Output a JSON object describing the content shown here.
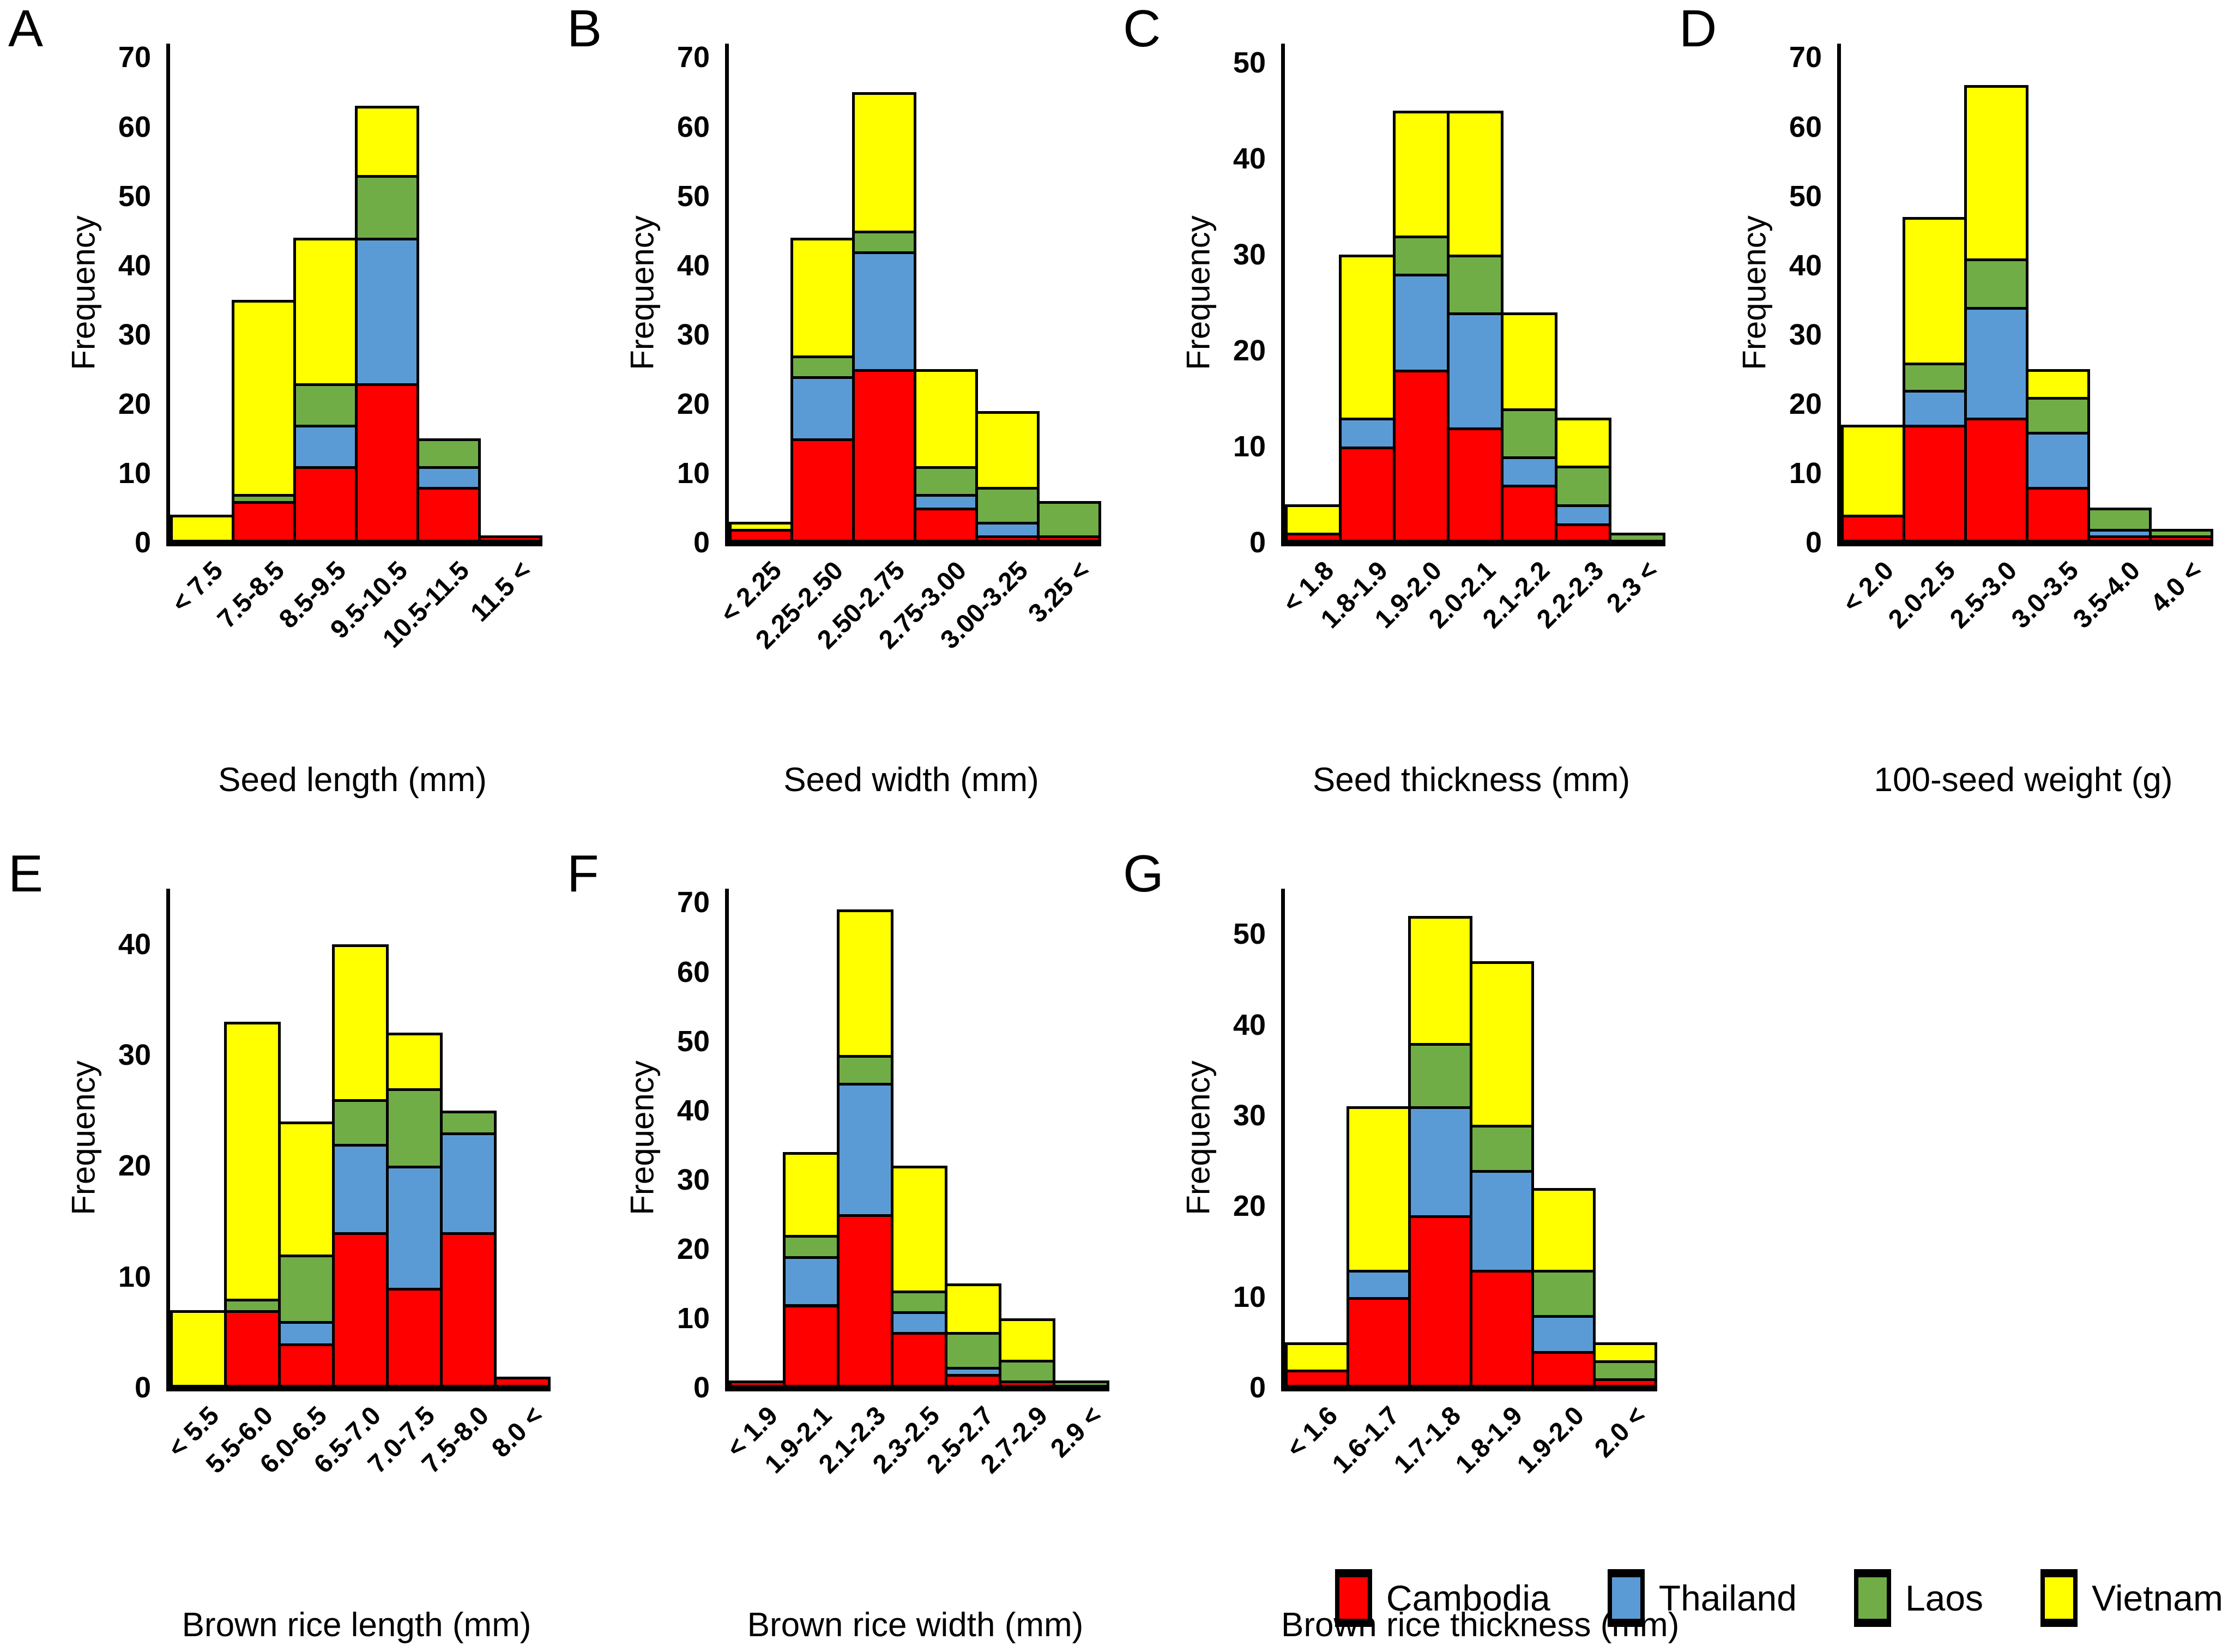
{
  "figure": {
    "ylabel": "Frequency",
    "legend_position": "bottom-right",
    "grid": "off",
    "background": "#ffffff",
    "axis_color": "#000000"
  },
  "legend": {
    "items": [
      {
        "label": "Cambodia",
        "color": "#FF0000",
        "swatch": "red-rect-icon"
      },
      {
        "label": "Thailand",
        "color": "#5B9BD5",
        "swatch": "blue-rect-icon"
      },
      {
        "label": "Laos",
        "color": "#70AD47",
        "swatch": "green-rect-icon"
      },
      {
        "label": "Vietnam",
        "color": "#FFFF00",
        "swatch": "yellow-rect-icon"
      }
    ]
  },
  "chart_data": [
    {
      "panel": "A",
      "type": "bar",
      "stacked": true,
      "title": "",
      "xlabel": "Seed length (mm)",
      "ylabel": "Frequency",
      "categories": [
        "< 7.5",
        "7.5-8.5",
        "8.5-9.5",
        "9.5-10.5",
        "10.5-11.5",
        "11.5 <"
      ],
      "yticks": [
        0,
        10,
        20,
        30,
        40,
        50,
        60,
        70
      ],
      "ylim": [
        0,
        72
      ],
      "series": [
        {
          "name": "Cambodia",
          "color": "#FF0000",
          "values": [
            0,
            6,
            11,
            23,
            8,
            1
          ]
        },
        {
          "name": "Thailand",
          "color": "#5B9BD5",
          "values": [
            0,
            0,
            6,
            21,
            3,
            0
          ]
        },
        {
          "name": "Laos",
          "color": "#70AD47",
          "values": [
            0,
            1,
            6,
            9,
            4,
            0
          ]
        },
        {
          "name": "Vietnam",
          "color": "#FFFF00",
          "values": [
            4,
            28,
            21,
            10,
            0,
            0
          ]
        }
      ]
    },
    {
      "panel": "B",
      "type": "bar",
      "stacked": true,
      "title": "",
      "xlabel": "Seed width (mm)",
      "ylabel": "Frequency",
      "categories": [
        "< 2.25",
        "2.25-2.50",
        "2.50-2.75",
        "2.75-3.00",
        "3.00-3.25",
        "3.25 <"
      ],
      "yticks": [
        0,
        10,
        20,
        30,
        40,
        50,
        60,
        70
      ],
      "ylim": [
        0,
        72
      ],
      "series": [
        {
          "name": "Cambodia",
          "color": "#FF0000",
          "values": [
            2,
            15,
            25,
            5,
            1,
            1
          ]
        },
        {
          "name": "Thailand",
          "color": "#5B9BD5",
          "values": [
            0,
            9,
            17,
            2,
            2,
            0
          ]
        },
        {
          "name": "Laos",
          "color": "#70AD47",
          "values": [
            0,
            3,
            3,
            4,
            5,
            5
          ]
        },
        {
          "name": "Vietnam",
          "color": "#FFFF00",
          "values": [
            1,
            17,
            20,
            14,
            11,
            0
          ]
        }
      ]
    },
    {
      "panel": "C",
      "type": "bar",
      "stacked": true,
      "title": "",
      "xlabel": "Seed thickness (mm)",
      "ylabel": "Frequency",
      "categories": [
        "< 1.8",
        "1.8-1.9",
        "1.9-2.0",
        "2.0-2.1",
        "2.1-2.2",
        "2.2-2.3",
        "2.3 <"
      ],
      "yticks": [
        0,
        10,
        20,
        30,
        40,
        50
      ],
      "ylim": [
        0,
        52
      ],
      "series": [
        {
          "name": "Cambodia",
          "color": "#FF0000",
          "values": [
            1,
            10,
            18,
            12,
            6,
            2,
            0
          ]
        },
        {
          "name": "Thailand",
          "color": "#5B9BD5",
          "values": [
            0,
            3,
            10,
            12,
            3,
            2,
            0
          ]
        },
        {
          "name": "Laos",
          "color": "#70AD47",
          "values": [
            0,
            0,
            4,
            6,
            5,
            4,
            1
          ]
        },
        {
          "name": "Vietnam",
          "color": "#FFFF00",
          "values": [
            3,
            17,
            13,
            15,
            10,
            5,
            0
          ]
        }
      ]
    },
    {
      "panel": "D",
      "type": "bar",
      "stacked": true,
      "title": "",
      "xlabel": "100-seed weight (g)",
      "ylabel": "Frequency",
      "categories": [
        "< 2.0",
        "2.0-2.5",
        "2.5-3.0",
        "3.0-3.5",
        "3.5-4.0",
        "4.0 <"
      ],
      "yticks": [
        0,
        10,
        20,
        30,
        40,
        50,
        60,
        70
      ],
      "ylim": [
        0,
        72
      ],
      "series": [
        {
          "name": "Cambodia",
          "color": "#FF0000",
          "values": [
            4,
            17,
            18,
            8,
            1,
            1
          ]
        },
        {
          "name": "Thailand",
          "color": "#5B9BD5",
          "values": [
            0,
            5,
            16,
            8,
            1,
            0
          ]
        },
        {
          "name": "Laos",
          "color": "#70AD47",
          "values": [
            0,
            4,
            7,
            5,
            3,
            1
          ]
        },
        {
          "name": "Vietnam",
          "color": "#FFFF00",
          "values": [
            13,
            21,
            25,
            4,
            0,
            0
          ]
        }
      ]
    },
    {
      "panel": "E",
      "type": "bar",
      "stacked": true,
      "title": "",
      "xlabel": "Brown rice length (mm)",
      "ylabel": "Frequency",
      "categories": [
        "< 5.5",
        "5.5-6.0",
        "6.0-6.5",
        "6.5-7.0",
        "7.0-7.5",
        "7.5-8.0",
        "8.0 <"
      ],
      "yticks": [
        0,
        10,
        20,
        30,
        40
      ],
      "ylim": [
        0,
        45
      ],
      "series": [
        {
          "name": "Cambodia",
          "color": "#FF0000",
          "values": [
            0,
            7,
            4,
            14,
            9,
            14,
            1
          ]
        },
        {
          "name": "Thailand",
          "color": "#5B9BD5",
          "values": [
            0,
            0,
            2,
            8,
            11,
            9,
            0
          ]
        },
        {
          "name": "Laos",
          "color": "#70AD47",
          "values": [
            0,
            1,
            6,
            4,
            7,
            2,
            0
          ]
        },
        {
          "name": "Vietnam",
          "color": "#FFFF00",
          "values": [
            7,
            25,
            12,
            14,
            5,
            0,
            0
          ]
        }
      ]
    },
    {
      "panel": "F",
      "type": "bar",
      "stacked": true,
      "title": "",
      "xlabel": "Brown rice width (mm)",
      "ylabel": "Frequency",
      "categories": [
        "< 1.9",
        "1.9-2.1",
        "2.1-2.3",
        "2.3-2.5",
        "2.5-2.7",
        "2.7-2.9",
        "2.9 <"
      ],
      "yticks": [
        0,
        10,
        20,
        30,
        40,
        50,
        60,
        70
      ],
      "ylim": [
        0,
        72
      ],
      "series": [
        {
          "name": "Cambodia",
          "color": "#FF0000",
          "values": [
            1,
            12,
            25,
            8,
            2,
            1,
            0
          ]
        },
        {
          "name": "Thailand",
          "color": "#5B9BD5",
          "values": [
            0,
            7,
            19,
            3,
            1,
            0,
            0
          ]
        },
        {
          "name": "Laos",
          "color": "#70AD47",
          "values": [
            0,
            3,
            4,
            3,
            5,
            3,
            1
          ]
        },
        {
          "name": "Vietnam",
          "color": "#FFFF00",
          "values": [
            0,
            12,
            21,
            18,
            7,
            6,
            0
          ]
        }
      ]
    },
    {
      "panel": "G",
      "type": "bar",
      "stacked": true,
      "title": "",
      "xlabel": "Brown rice thickness (mm)",
      "ylabel": "Frequency",
      "categories": [
        "< 1.6",
        "1.6-1.7",
        "1.7-1.8",
        "1.8-1.9",
        "1.9-2.0",
        "2.0 <"
      ],
      "yticks": [
        0,
        10,
        20,
        30,
        40,
        50
      ],
      "ylim": [
        0,
        55
      ],
      "series": [
        {
          "name": "Cambodia",
          "color": "#FF0000",
          "values": [
            2,
            10,
            19,
            13,
            4,
            1
          ]
        },
        {
          "name": "Thailand",
          "color": "#5B9BD5",
          "values": [
            0,
            3,
            12,
            11,
            4,
            0
          ]
        },
        {
          "name": "Laos",
          "color": "#70AD47",
          "values": [
            0,
            0,
            7,
            5,
            5,
            2
          ]
        },
        {
          "name": "Vietnam",
          "color": "#FFFF00",
          "values": [
            3,
            18,
            14,
            18,
            9,
            2
          ]
        }
      ]
    }
  ]
}
